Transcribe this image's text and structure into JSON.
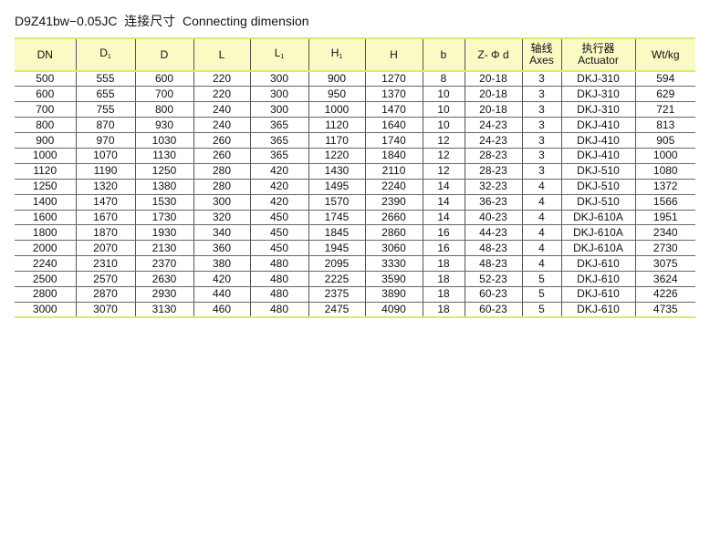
{
  "title": "D9Z41bw−0.05JC  连接尺寸  Connecting dimension",
  "header": {
    "columns": [
      {
        "main": "DN",
        "sub": ""
      },
      {
        "main": "D",
        "sub": "1"
      },
      {
        "main": "D",
        "sub": ""
      },
      {
        "main": "L",
        "sub": ""
      },
      {
        "main": "L",
        "sub": "1"
      },
      {
        "main": "H",
        "sub": "1"
      },
      {
        "main": "H",
        "sub": ""
      },
      {
        "main": "b",
        "sub": ""
      },
      {
        "main": "Z- Φ d",
        "sub": ""
      },
      {
        "main": "轴线",
        "line2": "Axes"
      },
      {
        "main": "执行器",
        "line2": "Actuator"
      },
      {
        "main": "Wt/kg",
        "sub": ""
      }
    ]
  },
  "rows": [
    [
      "500",
      "555",
      "600",
      "220",
      "300",
      "900",
      "1270",
      "8",
      "20-18",
      "3",
      "DKJ-310",
      "594"
    ],
    [
      "600",
      "655",
      "700",
      "220",
      "300",
      "950",
      "1370",
      "10",
      "20-18",
      "3",
      "DKJ-310",
      "629"
    ],
    [
      "700",
      "755",
      "800",
      "240",
      "300",
      "1000",
      "1470",
      "10",
      "20-18",
      "3",
      "DKJ-310",
      "721"
    ],
    [
      "800",
      "870",
      "930",
      "240",
      "365",
      "1120",
      "1640",
      "10",
      "24-23",
      "3",
      "DKJ-410",
      "813"
    ],
    [
      "900",
      "970",
      "1030",
      "260",
      "365",
      "1170",
      "1740",
      "12",
      "24-23",
      "3",
      "DKJ-410",
      "905"
    ],
    [
      "1000",
      "1070",
      "1130",
      "260",
      "365",
      "1220",
      "1840",
      "12",
      "28-23",
      "3",
      "DKJ-410",
      "1000"
    ],
    [
      "1120",
      "1190",
      "1250",
      "280",
      "420",
      "1430",
      "2110",
      "12",
      "28-23",
      "3",
      "DKJ-510",
      "1080"
    ],
    [
      "1250",
      "1320",
      "1380",
      "280",
      "420",
      "1495",
      "2240",
      "14",
      "32-23",
      "4",
      "DKJ-510",
      "1372"
    ],
    [
      "1400",
      "1470",
      "1530",
      "300",
      "420",
      "1570",
      "2390",
      "14",
      "36-23",
      "4",
      "DKJ-510",
      "1566"
    ],
    [
      "1600",
      "1670",
      "1730",
      "320",
      "450",
      "1745",
      "2660",
      "14",
      "40-23",
      "4",
      "DKJ-610A",
      "1951"
    ],
    [
      "1800",
      "1870",
      "1930",
      "340",
      "450",
      "1845",
      "2860",
      "16",
      "44-23",
      "4",
      "DKJ-610A",
      "2340"
    ],
    [
      "2000",
      "2070",
      "2130",
      "360",
      "450",
      "1945",
      "3060",
      "16",
      "48-23",
      "4",
      "DKJ-610A",
      "2730"
    ],
    [
      "2240",
      "2310",
      "2370",
      "380",
      "480",
      "2095",
      "3330",
      "18",
      "48-23",
      "4",
      "DKJ-610",
      "3075"
    ],
    [
      "2500",
      "2570",
      "2630",
      "420",
      "480",
      "2225",
      "3590",
      "18",
      "52-23",
      "5",
      "DKJ-610",
      "3624"
    ],
    [
      "2800",
      "2870",
      "2930",
      "440",
      "480",
      "2375",
      "3890",
      "18",
      "60-23",
      "5",
      "DKJ-610",
      "4226"
    ],
    [
      "3000",
      "3070",
      "3130",
      "460",
      "480",
      "2475",
      "4090",
      "18",
      "60-23",
      "5",
      "DKJ-610",
      "4735"
    ]
  ]
}
